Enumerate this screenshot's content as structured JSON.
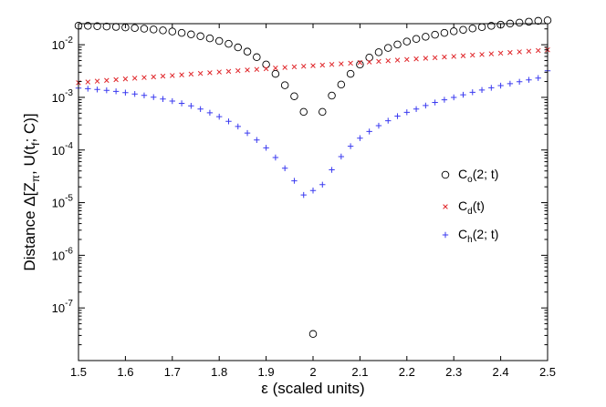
{
  "chart_data": {
    "type": "scatter",
    "title": "",
    "xlabel": "ε (scaled units)",
    "ylabel_parts": [
      "Distance Δ[Z",
      "π",
      ", U(t",
      "f",
      "; C)]"
    ],
    "xlim": [
      1.5,
      2.5
    ],
    "ylim_log10": [
      -8,
      -1.6
    ],
    "yscale": "log",
    "x_ticks": [
      "1.5",
      "1.6",
      "1.7",
      "1.8",
      "1.9",
      "2",
      "2.1",
      "2.2",
      "2.3",
      "2.4",
      "2.5"
    ],
    "y_ticks": [
      {
        "base": "10",
        "exp": "-7",
        "log": -7
      },
      {
        "base": "10",
        "exp": "-6",
        "log": -6
      },
      {
        "base": "10",
        "exp": "-5",
        "log": -5
      },
      {
        "base": "10",
        "exp": "-4",
        "log": -4
      },
      {
        "base": "10",
        "exp": "-3",
        "log": -3
      },
      {
        "base": "10",
        "exp": "-2",
        "log": -2
      }
    ],
    "legend_position": "center-right",
    "series": [
      {
        "name": "Co(2; t)",
        "label_main": "C",
        "label_sub": "o",
        "label_rest": "(2; t)",
        "marker": "circle",
        "color": "#000000",
        "x": [
          1.5,
          1.52,
          1.54,
          1.56,
          1.58,
          1.6,
          1.62,
          1.64,
          1.66,
          1.68,
          1.7,
          1.72,
          1.74,
          1.76,
          1.78,
          1.8,
          1.82,
          1.84,
          1.86,
          1.88,
          1.9,
          1.92,
          1.94,
          1.96,
          1.98,
          2.0,
          2.02,
          2.04,
          2.06,
          2.08,
          2.1,
          2.12,
          2.14,
          2.16,
          2.18,
          2.2,
          2.22,
          2.24,
          2.26,
          2.28,
          2.3,
          2.32,
          2.34,
          2.36,
          2.38,
          2.4,
          2.42,
          2.44,
          2.46,
          2.48,
          2.5
        ],
        "y": [
          0.023,
          0.0228,
          0.0225,
          0.0222,
          0.0218,
          0.0213,
          0.0208,
          0.0202,
          0.0195,
          0.0187,
          0.0178,
          0.0168,
          0.0157,
          0.0145,
          0.0132,
          0.0118,
          0.0104,
          0.0089,
          0.0074,
          0.0058,
          0.0042,
          0.0028,
          0.0017,
          0.00105,
          0.00053,
          3.2e-08,
          0.00053,
          0.00108,
          0.00175,
          0.0028,
          0.0042,
          0.0057,
          0.0072,
          0.0087,
          0.0101,
          0.0115,
          0.0129,
          0.0142,
          0.0155,
          0.0168,
          0.018,
          0.0192,
          0.0204,
          0.0216,
          0.0228,
          0.024,
          0.0252,
          0.0263,
          0.0274,
          0.0284,
          0.029
        ]
      },
      {
        "name": "Cd(t)",
        "label_main": "C",
        "label_sub": "d",
        "label_rest": "(t)",
        "marker": "x",
        "color": "#e0262a",
        "x": [
          1.5,
          1.52,
          1.54,
          1.56,
          1.58,
          1.6,
          1.62,
          1.64,
          1.66,
          1.68,
          1.7,
          1.72,
          1.74,
          1.76,
          1.78,
          1.8,
          1.82,
          1.84,
          1.86,
          1.88,
          1.9,
          1.92,
          1.94,
          1.96,
          1.98,
          2.0,
          2.02,
          2.04,
          2.06,
          2.08,
          2.1,
          2.12,
          2.14,
          2.16,
          2.18,
          2.2,
          2.22,
          2.24,
          2.26,
          2.28,
          2.3,
          2.32,
          2.34,
          2.36,
          2.38,
          2.4,
          2.42,
          2.44,
          2.46,
          2.48,
          2.5
        ],
        "y": [
          0.0019,
          0.00196,
          0.00203,
          0.0021,
          0.00217,
          0.00224,
          0.00231,
          0.00238,
          0.00245,
          0.00253,
          0.0026,
          0.00268,
          0.00277,
          0.00285,
          0.00294,
          0.00303,
          0.00312,
          0.00321,
          0.00331,
          0.0034,
          0.0035,
          0.0036,
          0.0037,
          0.0038,
          0.0039,
          0.004,
          0.0041,
          0.00422,
          0.00434,
          0.00446,
          0.00458,
          0.0047,
          0.00483,
          0.00496,
          0.0051,
          0.00524,
          0.00538,
          0.00553,
          0.00568,
          0.00584,
          0.006,
          0.00617,
          0.00635,
          0.00653,
          0.00672,
          0.00691,
          0.00711,
          0.00732,
          0.00754,
          0.00777,
          0.008
        ]
      },
      {
        "name": "Ch(2; t)",
        "label_main": "C",
        "label_sub": "h",
        "label_rest": "(2; t)",
        "marker": "plus",
        "color": "#3a3af0",
        "x": [
          1.5,
          1.52,
          1.54,
          1.56,
          1.58,
          1.6,
          1.62,
          1.64,
          1.66,
          1.68,
          1.7,
          1.72,
          1.74,
          1.76,
          1.78,
          1.8,
          1.82,
          1.84,
          1.86,
          1.88,
          1.9,
          1.92,
          1.94,
          1.96,
          1.98,
          2.0,
          2.02,
          2.04,
          2.06,
          2.08,
          2.1,
          2.12,
          2.14,
          2.16,
          2.18,
          2.2,
          2.22,
          2.24,
          2.26,
          2.28,
          2.3,
          2.32,
          2.34,
          2.36,
          2.38,
          2.4,
          2.42,
          2.44,
          2.46,
          2.48,
          2.5
        ],
        "y": [
          0.0015,
          0.00146,
          0.00141,
          0.00136,
          0.0013,
          0.00123,
          0.00116,
          0.00109,
          0.00101,
          0.00093,
          0.00085,
          0.00077,
          0.00069,
          0.0006,
          0.00051,
          0.00043,
          0.00035,
          0.00028,
          0.00021,
          0.000155,
          0.00011,
          7.2e-05,
          4.5e-05,
          2.6e-05,
          1.4e-05,
          1.7e-05,
          2.2e-05,
          4.2e-05,
          7.5e-05,
          0.000118,
          0.000168,
          0.000225,
          0.00029,
          0.00036,
          0.00044,
          0.00052,
          0.0006,
          0.0007,
          0.0008,
          0.0009,
          0.001,
          0.00112,
          0.00125,
          0.00138,
          0.00152,
          0.00167,
          0.00182,
          0.00198,
          0.00215,
          0.00233,
          0.0032
        ]
      }
    ]
  }
}
